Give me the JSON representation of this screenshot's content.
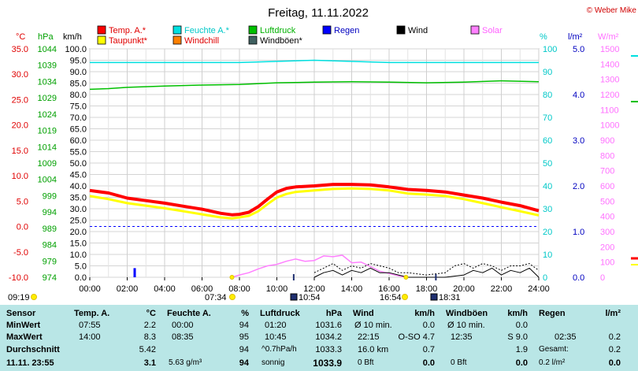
{
  "title": "Freitag, 11.11.2022",
  "copyright": "© Weber Mike",
  "legend": [
    {
      "label": "Temp. A.*",
      "color": "#ff0000",
      "text_color": "#e00000"
    },
    {
      "label": "Feuchte A.*",
      "color": "#00e0e0",
      "text_color": "#00c8c8"
    },
    {
      "label": "Luftdruck",
      "color": "#00c000",
      "text_color": "#00b000"
    },
    {
      "label": "Regen",
      "color": "#0000ff",
      "text_color": "#0000c0"
    },
    {
      "label": "Wind",
      "color": "#000000",
      "text_color": "#000000"
    },
    {
      "label": "Solar",
      "color": "#ff80ff",
      "text_color": "#ff60ff"
    },
    {
      "label": "Taupunkt*",
      "color": "#ffff00",
      "text_color": "#e00000"
    },
    {
      "label": "Windchill",
      "color": "#ff8000",
      "text_color": "#e00000"
    },
    {
      "label": "Windböen*",
      "color": "#406060",
      "text_color": "#000000"
    }
  ],
  "axis_units": {
    "temp": "°C",
    "pressure": "hPa",
    "wind": "km/h",
    "humidity": "%",
    "rain": "l/m²",
    "solar": "W/m²"
  },
  "sun": {
    "rise_label": "09:19",
    "rise2_label": "07:34",
    "moon_rise_label": "10:54",
    "sunset_label": "16:54",
    "moon_set_label": "18:31"
  },
  "chart_data": {
    "type": "line",
    "x_range": [
      "00:00",
      "24:00"
    ],
    "x_ticks": [
      "00:00",
      "02:00",
      "04:00",
      "06:00",
      "08:00",
      "10:00",
      "12:00",
      "14:00",
      "16:00",
      "18:00",
      "20:00",
      "22:00",
      "24:00"
    ],
    "temp_ticks": [
      "35.0",
      "30.0",
      "25.0",
      "20.0",
      "15.0",
      "10.0",
      "5.0",
      "0.0",
      "-5.0",
      "-10.0"
    ],
    "pressure_ticks": [
      "1044",
      "1039",
      "1034",
      "1029",
      "1024",
      "1019",
      "1014",
      "1009",
      "1004",
      "999",
      "994",
      "989",
      "984",
      "979",
      "974"
    ],
    "wind_ticks": [
      "100.0",
      "95.0",
      "90.0",
      "85.0",
      "80.0",
      "75.0",
      "70.0",
      "65.0",
      "60.0",
      "55.0",
      "50.0",
      "45.0",
      "40.0",
      "35.0",
      "30.0",
      "25.0",
      "20.0",
      "15.0",
      "10.0",
      "5.0",
      "0.0"
    ],
    "humidity_ticks": [
      "100",
      "90",
      "80",
      "70",
      "60",
      "50",
      "40",
      "30",
      "20",
      "10",
      "0"
    ],
    "rain_ticks": [
      "5.0",
      "4.0",
      "3.0",
      "2.0",
      "1.0",
      "0.0"
    ],
    "solar_ticks": [
      "1500",
      "1400",
      "1300",
      "1200",
      "1100",
      "1000",
      "900",
      "800",
      "700",
      "600",
      "500",
      "400",
      "300",
      "200",
      "100",
      "0"
    ],
    "temp_range": [
      -10,
      35
    ],
    "humidity_range": [
      0,
      100
    ],
    "series": [
      {
        "name": "Temp. A.*",
        "axis": "temp",
        "color": "#ff0000",
        "x": [
          0,
          1,
          2,
          3,
          4,
          5,
          6,
          7,
          7.6,
          8,
          8.5,
          9,
          9.5,
          10,
          10.5,
          11,
          12,
          13,
          14,
          15,
          16,
          17,
          18,
          19,
          20,
          21,
          22,
          23,
          24
        ],
        "values": [
          7.1,
          6.6,
          5.6,
          5.1,
          4.6,
          4.0,
          3.4,
          2.6,
          2.3,
          2.4,
          2.8,
          3.9,
          5.4,
          6.8,
          7.5,
          7.8,
          8.0,
          8.3,
          8.3,
          8.2,
          7.8,
          7.3,
          7.1,
          6.8,
          6.2,
          5.6,
          4.8,
          4.1,
          3.1
        ]
      },
      {
        "name": "Taupunkt*",
        "axis": "temp",
        "color": "#ffff00",
        "x": [
          0,
          1,
          2,
          3,
          4,
          5,
          6,
          7,
          7.6,
          8,
          8.5,
          9,
          9.5,
          10,
          10.5,
          11,
          12,
          13,
          14,
          15,
          16,
          17,
          18,
          19,
          20,
          21,
          22,
          23,
          24
        ],
        "values": [
          6.0,
          5.4,
          4.6,
          4.1,
          3.6,
          3.0,
          2.4,
          1.8,
          1.6,
          1.8,
          2.1,
          3.0,
          4.4,
          5.7,
          6.4,
          6.8,
          7.1,
          7.4,
          7.5,
          7.4,
          7.1,
          6.5,
          6.3,
          6.0,
          5.4,
          4.6,
          3.8,
          3.0,
          2.2
        ]
      },
      {
        "name": "Feuchte A.*",
        "axis": "humidity",
        "color": "#00e0e0",
        "x": [
          0,
          4,
          8,
          12,
          16,
          20,
          24
        ],
        "values": [
          94,
          94,
          94,
          95,
          94,
          94,
          94
        ]
      },
      {
        "name": "Luftdruck",
        "axis": "pressure",
        "color": "#00c000",
        "x": [
          0,
          1,
          2,
          4,
          6,
          8,
          10,
          12,
          14,
          16,
          18,
          20,
          22,
          24
        ],
        "values": [
          1031.6,
          1031.8,
          1032.2,
          1032.6,
          1032.9,
          1033.1,
          1033.6,
          1033.8,
          1033.9,
          1033.8,
          1033.6,
          1033.8,
          1034.2,
          1033.9
        ]
      },
      {
        "name": "Solar",
        "axis": "solar",
        "color": "#ff80ff",
        "x": [
          7.6,
          8,
          8.5,
          9,
          9.5,
          10,
          10.5,
          11,
          11.5,
          12,
          12.5,
          13,
          13.5,
          14,
          14.5,
          15,
          15.5,
          16,
          16.5,
          16.9
        ],
        "values": [
          0,
          15,
          30,
          55,
          75,
          85,
          105,
          120,
          105,
          110,
          140,
          135,
          145,
          95,
          100,
          70,
          40,
          25,
          10,
          0
        ]
      },
      {
        "name": "Wind",
        "axis": "wind",
        "color": "#000000",
        "x": [
          12,
          12.5,
          13,
          13.5,
          14,
          14.5,
          15,
          15.5,
          16,
          17,
          18,
          19,
          20,
          20.5,
          21,
          21.5,
          22,
          22.5,
          23,
          23.5,
          24
        ],
        "values": [
          0,
          2,
          3,
          1,
          3,
          2,
          4,
          2,
          2,
          0,
          0,
          0,
          1,
          3,
          2,
          4,
          1,
          3,
          2,
          4,
          0
        ]
      },
      {
        "name": "Windböen*",
        "axis": "wind",
        "color": "#000000",
        "x": [
          12,
          12.5,
          13,
          13.5,
          14,
          14.5,
          15,
          15.5,
          16,
          16.5,
          17,
          18,
          19,
          19.5,
          20,
          20.5,
          21,
          21.5,
          22,
          22.5,
          23,
          23.5,
          24
        ],
        "values": [
          2,
          4,
          6,
          3,
          5,
          4,
          6,
          5,
          4,
          2,
          2,
          1,
          2,
          5,
          6,
          4,
          6,
          5,
          3,
          5,
          5,
          6,
          3
        ]
      }
    ],
    "rain_events": [
      {
        "x": 2.4,
        "value": 0.2
      }
    ],
    "pressure_range": [
      974,
      1044
    ],
    "wind_range": [
      0,
      100
    ],
    "rain_range": [
      0,
      5
    ],
    "solar_range": [
      0,
      1500
    ]
  },
  "table": {
    "sensor": {
      "header": "Sensor",
      "min": "MinWert",
      "max": "MaxWert",
      "avg": "Durchschnitt",
      "cur": "11.11. 23:55"
    },
    "temp": {
      "h1": "Temp. A.",
      "h2": "°C",
      "min_t": "07:55",
      "min_v": "2.2",
      "max_t": "14:00",
      "max_v": "8.3",
      "avg": "5.42",
      "cur": "3.1"
    },
    "hum": {
      "h1": "Feuchte A.",
      "h2": "%",
      "min_t": "00:00",
      "min_v": "94",
      "max_t": "08:35",
      "max_v": "95",
      "avg": "94",
      "cur_l": "5.63 g/m³",
      "cur": "94"
    },
    "press": {
      "h1": "Luftdruck",
      "h2": "hPa",
      "min_t": "01:20",
      "min_v": "1031.6",
      "max_t": "10:45",
      "max_v": "1034.2",
      "avg_l": "^0.7hPa/h",
      "avg": "1033.3",
      "cur_l": "sonnig",
      "cur": "1033.9"
    },
    "wind": {
      "h1": "Wind",
      "h2": "km/h",
      "min_t": "Ø 10 min.",
      "min_v": "0.0",
      "max_t": "22:15",
      "max_v": "O-SO 4.7",
      "avg_l": "16.0 km",
      "avg": "0.7",
      "cur_l": "0 Bft",
      "cur": "0.0"
    },
    "gust": {
      "h1": "Windböen",
      "h2": "km/h",
      "min_t": "Ø 10 min.",
      "min_v": "0.0",
      "max_t": "12:35",
      "max_v": "S 9.0",
      "avg": "1.9",
      "cur_l": "0 Bft",
      "cur": "0.0"
    },
    "rain": {
      "h1": "Regen",
      "h2": "l/m²",
      "max_t": "02:35",
      "max_v": "0.2",
      "avg_l": "Gesamt:",
      "avg": "0.2",
      "cur_l": "0.2 l/m²",
      "cur": "0.0"
    }
  }
}
